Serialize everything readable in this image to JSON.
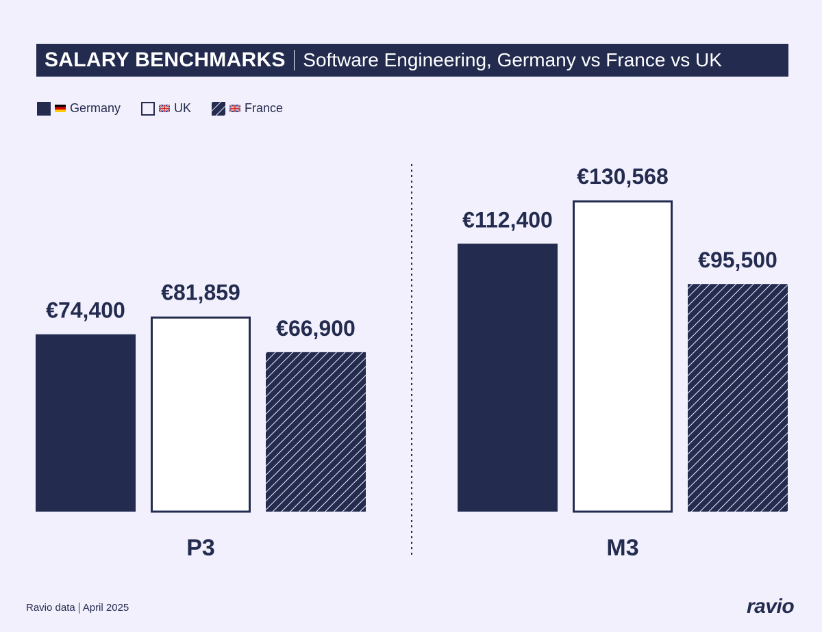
{
  "title": {
    "main": "SALARY BENCHMARKS",
    "subtitle": "Software Engineering, Germany vs France vs UK"
  },
  "legend": [
    {
      "label": "Germany",
      "flag": "germany-flag",
      "style": "solid"
    },
    {
      "label": "UK",
      "flag": "uk-flag",
      "style": "outline"
    },
    {
      "label": "France",
      "flag": "uk-flag",
      "style": "hatched"
    }
  ],
  "colors": {
    "navy": "#232b4f",
    "background": "#f2f0fc"
  },
  "chart_data": {
    "type": "bar",
    "title": "SALARY BENCHMARKS",
    "subtitle": "Software Engineering, Germany vs France vs UK",
    "categories": [
      "P3",
      "M3"
    ],
    "series": [
      {
        "name": "Germany",
        "values": [
          74400,
          112400
        ],
        "labels": [
          "€74,400",
          "€112,400"
        ]
      },
      {
        "name": "UK",
        "values": [
          81859,
          130568
        ],
        "labels": [
          "€81,859",
          "€130,568"
        ]
      },
      {
        "name": "France",
        "values": [
          66900,
          95500
        ],
        "labels": [
          "€66,900",
          "€95,500"
        ]
      }
    ],
    "ylim": [
      0,
      130568
    ],
    "grid": false,
    "legend_position": "top-left"
  },
  "footer": {
    "source": "Ravio data",
    "date": "April 2025"
  },
  "logo": "ravio"
}
